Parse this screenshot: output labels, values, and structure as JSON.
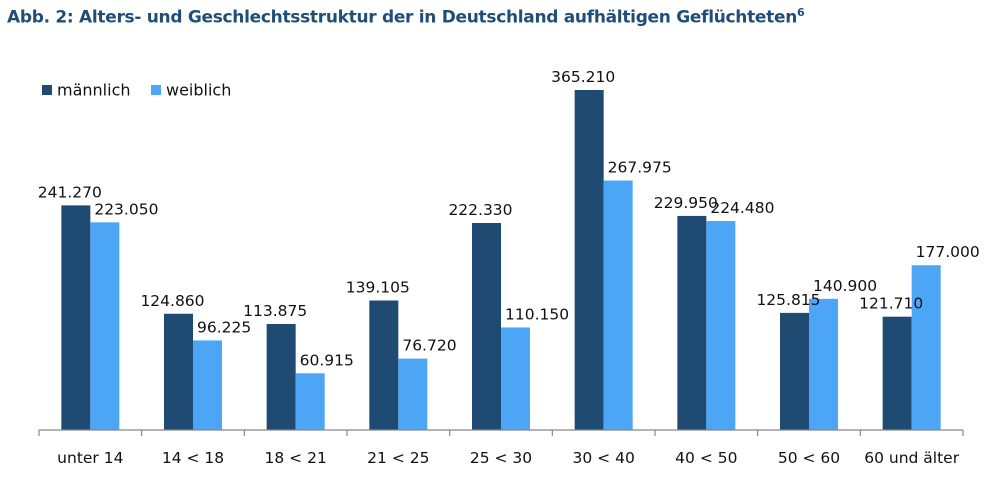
{
  "chart_data": {
    "type": "bar",
    "title": "Abb. 2: Alters- und Geschlechtsstruktur der in Deutschland aufhältigen Geflüchteten",
    "title_footnote": "6",
    "xlabel": "",
    "ylabel": "",
    "ylim": [
      0,
      365210
    ],
    "grid": false,
    "legend_position": "top-left",
    "categories": [
      "unter 14",
      "14 < 18",
      "18 < 21",
      "21 < 25",
      "25 < 30",
      "30 < 40",
      "40 < 50",
      "50 < 60",
      "60 und älter"
    ],
    "series": [
      {
        "name": "männlich",
        "color": "#1f4a72",
        "values": [
          241270,
          124860,
          113875,
          139105,
          222330,
          365210,
          229950,
          125815,
          121710
        ],
        "labels": [
          "241.270",
          "124.860",
          "113.875",
          "139.105",
          "222.330",
          "365.210",
          "229.950",
          "125.815",
          "121.710"
        ]
      },
      {
        "name": "weiblich",
        "color": "#4da6f5",
        "values": [
          223050,
          96225,
          60915,
          76720,
          110150,
          267975,
          224480,
          140900,
          177000
        ],
        "labels": [
          "223.050",
          "96.225",
          "60.915",
          "76.720",
          "110.150",
          "267.975",
          "224.480",
          "140.900",
          "177.000"
        ]
      }
    ]
  }
}
